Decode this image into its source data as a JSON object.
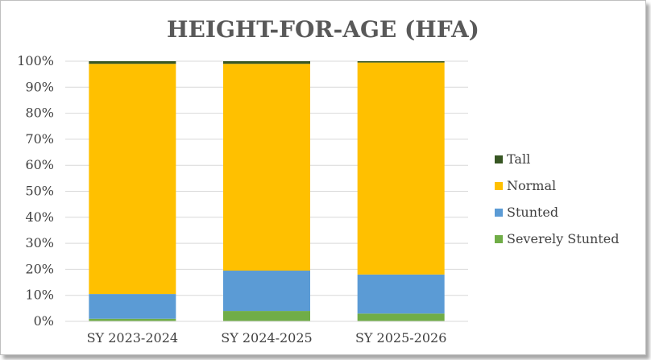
{
  "chart_data": {
    "type": "bar",
    "stacked": true,
    "percent": true,
    "title": "HEIGHT-FOR-AGE (HFA)",
    "xlabel": "",
    "ylabel": "",
    "ylim": [
      0,
      100
    ],
    "yticks": [
      "0%",
      "10%",
      "20%",
      "30%",
      "40%",
      "50%",
      "60%",
      "70%",
      "80%",
      "90%",
      "100%"
    ],
    "grid": true,
    "legend_position": "right",
    "categories": [
      "SY 2023-2024",
      "SY 2024-2025",
      "SY 2025-2026"
    ],
    "series": [
      {
        "name": "Severely Stunted",
        "color": "#70ad47",
        "values": [
          1.0,
          4.0,
          3.0
        ]
      },
      {
        "name": "Stunted",
        "color": "#5b9bd5",
        "values": [
          9.5,
          15.5,
          15.0
        ]
      },
      {
        "name": "Normal",
        "color": "#ffc000",
        "values": [
          88.5,
          79.5,
          81.5
        ]
      },
      {
        "name": "Tall",
        "color": "#375623",
        "values": [
          1.0,
          1.0,
          0.5
        ]
      }
    ]
  }
}
